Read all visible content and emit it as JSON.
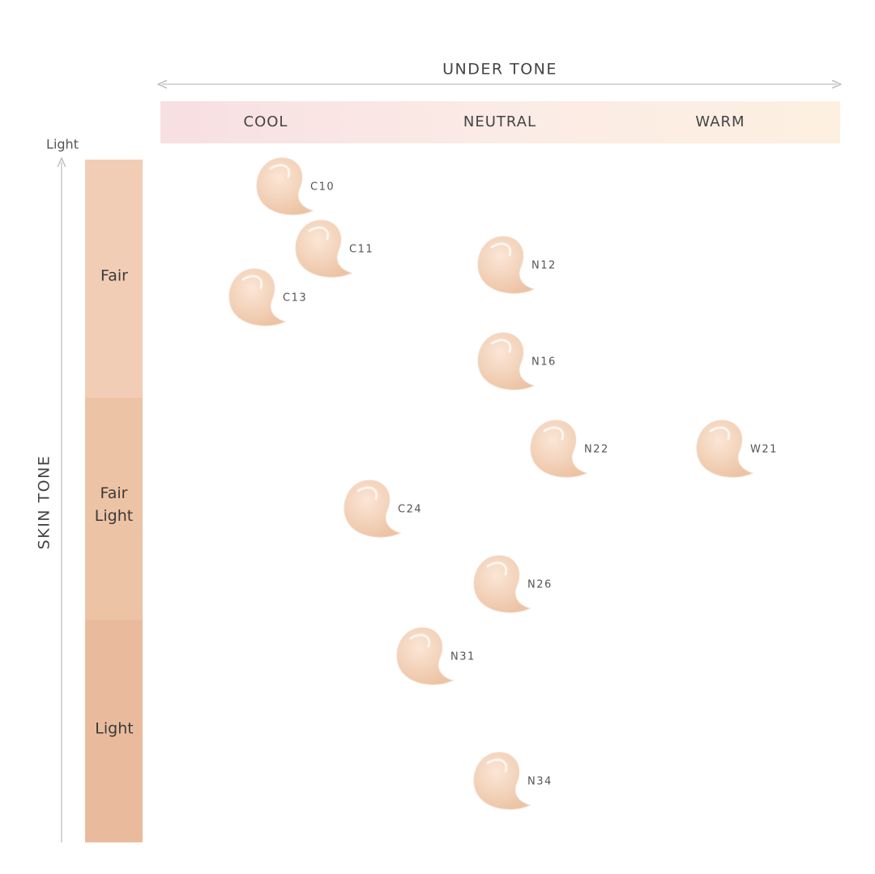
{
  "header": {
    "title": "UNDER TONE"
  },
  "undertones": [
    "COOL",
    "NEUTRAL",
    "WARM"
  ],
  "axis": {
    "title": "SKIN TONE",
    "top_label": "Light"
  },
  "skin_tones": [
    "Fair",
    "Fair Light",
    "Light"
  ],
  "shades": [
    {
      "label": "C10"
    },
    {
      "label": "C11"
    },
    {
      "label": "C13"
    },
    {
      "label": "N12"
    },
    {
      "label": "N16"
    },
    {
      "label": "N22"
    },
    {
      "label": "W21"
    },
    {
      "label": "C24"
    },
    {
      "label": "N26"
    },
    {
      "label": "N31"
    },
    {
      "label": "N34"
    }
  ]
}
